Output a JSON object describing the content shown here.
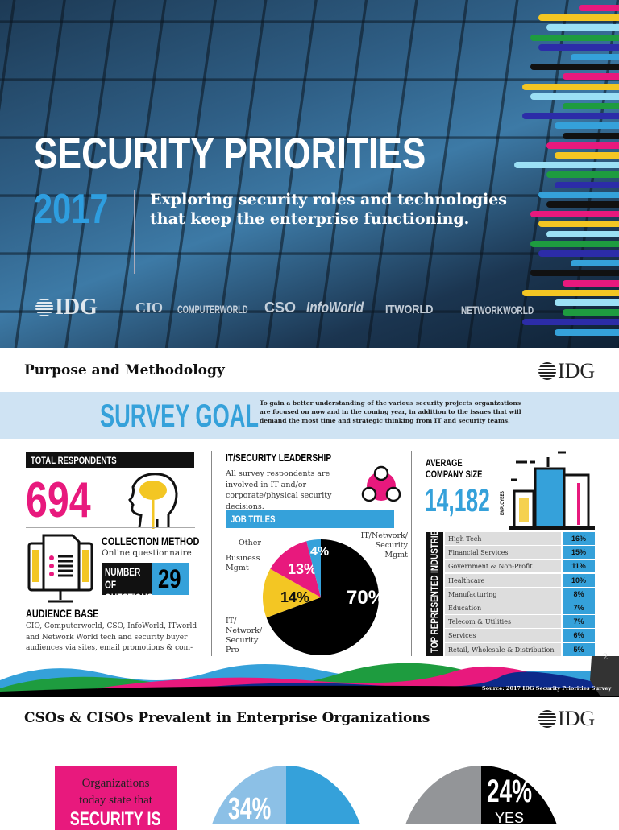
{
  "hero": {
    "title": "SECURITY PRIORITIES",
    "year": "2017",
    "subtitle": "Exploring security roles and technologies that keep the enterprise functioning.",
    "logos": [
      "IDG",
      "CIO",
      "COMPUTERWORLD",
      "CSO",
      "InfoWorld",
      "ITWORLD",
      "NETWORKWORLD"
    ]
  },
  "page2": {
    "title": "Purpose and Methodology",
    "brand": "IDG",
    "goal": {
      "label": "SURVEY GOAL",
      "text": "To gain a better understanding of the various security projects organizations are focused on now and in the coming year, in addition to the issues that will demand the most time and strategic thinking from IT and security teams."
    },
    "respondents": {
      "label": "TOTAL RESPONDENTS",
      "value": "694"
    },
    "collection": {
      "label": "COLLECTION METHOD",
      "value": "Online questionnaire",
      "questions_label": "NUMBER OF QUESTIONS",
      "questions": "29"
    },
    "audience": {
      "label": "AUDIENCE BASE",
      "text": "CIO, Computerworld, CSO, InfoWorld, ITworld and Network World tech and security buyer audiences via sites, email promotions & com-"
    },
    "leadership": {
      "label": "IT/SECURITY LEADERSHIP",
      "text": "All survey respondents are involved in IT and/or corporate/physical security decisions."
    },
    "job_titles": {
      "label": "JOB TITLES",
      "slices": [
        {
          "label": "IT/Network/ Security Mgmt",
          "pct": "70%",
          "value": 70,
          "color": "#000000"
        },
        {
          "label": "IT/ Network/ Security Pro",
          "pct": "14%",
          "value": 14,
          "color": "#f3c623"
        },
        {
          "label": "Business Mgmt",
          "pct": "13%",
          "value": 13,
          "color": "#e8197d"
        },
        {
          "label": "Other",
          "pct": "4%",
          "value": 4,
          "color": "#35a1da"
        }
      ]
    },
    "company": {
      "label1": "AVERAGE",
      "label2": "COMPANY SIZE",
      "value": "14,182",
      "unit": "EMPLOYEES"
    },
    "industries": {
      "label": "TOP REPRESENTED INDUSTRIES",
      "rows": [
        {
          "name": "High Tech",
          "pct": "16%"
        },
        {
          "name": "Financial Services",
          "pct": "15%"
        },
        {
          "name": "Government & Non-Profit",
          "pct": "11%"
        },
        {
          "name": "Healthcare",
          "pct": "10%"
        },
        {
          "name": "Manufacturing",
          "pct": "8%"
        },
        {
          "name": "Education",
          "pct": "7%"
        },
        {
          "name": "Telecom & Utilities",
          "pct": "7%"
        },
        {
          "name": "Services",
          "pct": "6%"
        },
        {
          "name": "Retail, Wholesale & Distribution",
          "pct": "5%"
        }
      ]
    },
    "source": "Source: 2017 IDG Security Priorities Survey",
    "page_number": "2"
  },
  "page3": {
    "title": "CSOs & CISOs Prevalent in Enterprise Organizations",
    "brand": "IDG",
    "callout": {
      "line1": "Organizations",
      "line2": "today state that",
      "line3": "SECURITY IS"
    },
    "pie1_pct": "34%",
    "pie2_pct": "24%",
    "pie2_label": "YES"
  },
  "colors": {
    "blue": "#35a1da",
    "pink": "#e8197d",
    "yellow": "#f3c623",
    "black": "#000000"
  }
}
